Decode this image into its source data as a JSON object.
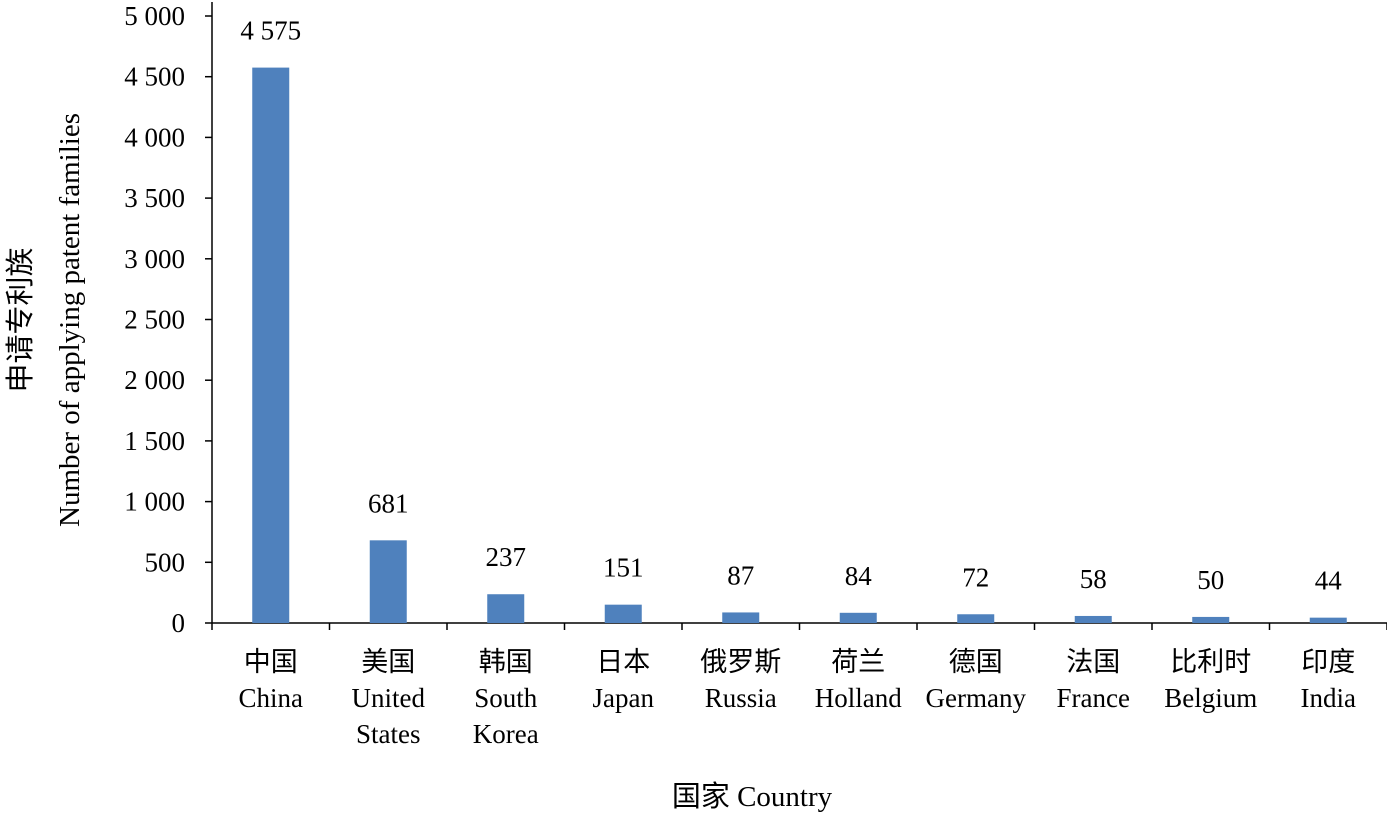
{
  "chart_data": {
    "type": "bar",
    "categories": [
      [
        "中国",
        "China"
      ],
      [
        "美国",
        "United",
        "States"
      ],
      [
        "韩国",
        "South",
        "Korea"
      ],
      [
        "日本",
        "Japan"
      ],
      [
        "俄罗斯",
        "Russia"
      ],
      [
        "荷兰",
        "Holland"
      ],
      [
        "德国",
        "Germany"
      ],
      [
        "法国",
        "France"
      ],
      [
        "比利时",
        "Belgium"
      ],
      [
        "印度",
        "India"
      ]
    ],
    "values": [
      4575,
      681,
      237,
      151,
      87,
      84,
      72,
      58,
      50,
      44
    ],
    "value_labels": [
      "4 575",
      "681",
      "237",
      "151",
      "87",
      "84",
      "72",
      "58",
      "50",
      "44"
    ],
    "yticks": [
      0,
      500,
      1000,
      1500,
      2000,
      2500,
      3000,
      3500,
      4000,
      4500,
      5000
    ],
    "ytick_labels": [
      "0",
      "500",
      "1 000",
      "1 500",
      "2 000",
      "2 500",
      "3 000",
      "3 500",
      "4 000",
      "4 500",
      "5 000"
    ],
    "ylim": [
      0,
      5000
    ],
    "xlabel": "国家  Country",
    "ylabel_cn": "申请专利族",
    "ylabel_en": "Number of applying patent families",
    "title": "",
    "grid": false,
    "legend": "none",
    "bar_color": "#4F81BD"
  }
}
